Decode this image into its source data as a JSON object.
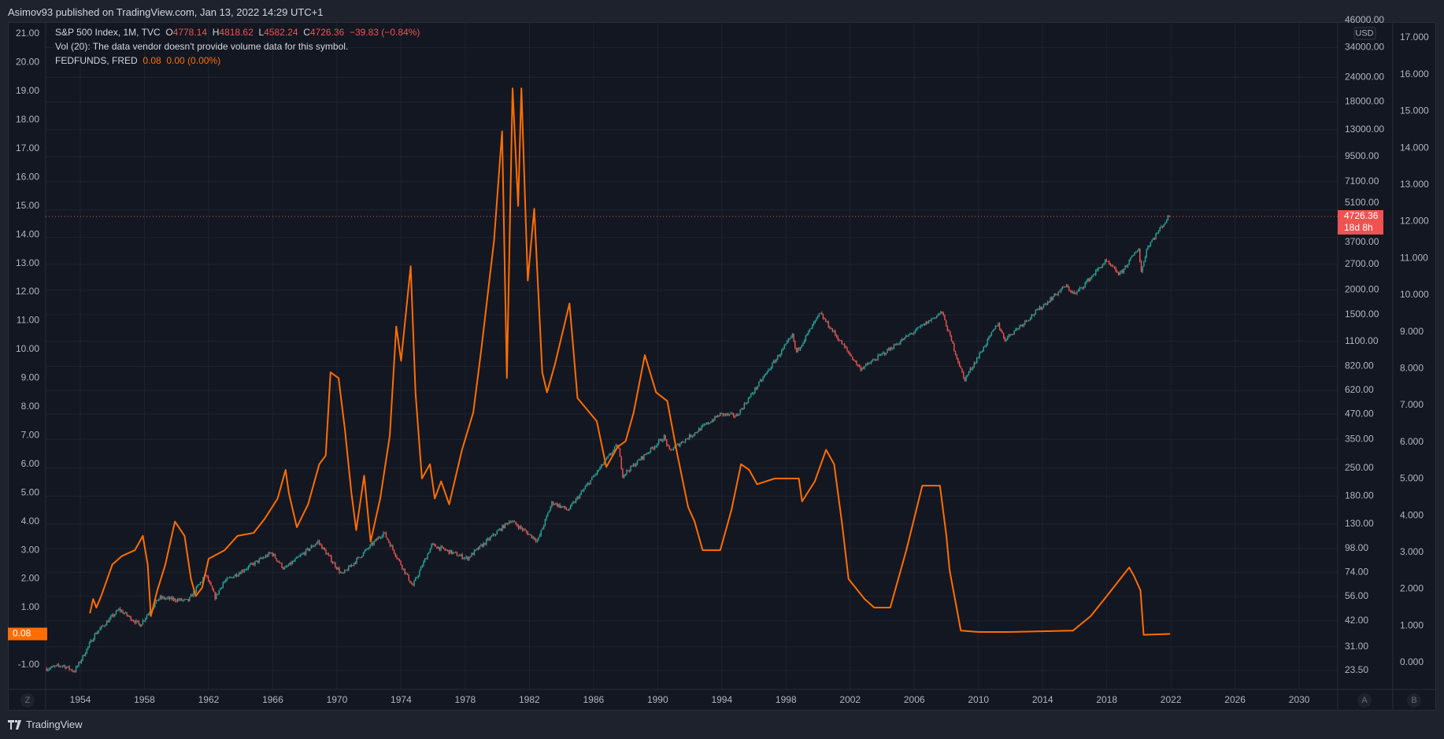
{
  "header": {
    "published": "Asimov93 published on TradingView.com, Jan 13, 2022 14:29 UTC+1"
  },
  "legend": {
    "symbol": "S&P 500 Index, 1M, TVC",
    "open_label": "O",
    "open": "4778.14",
    "high_label": "H",
    "high": "4818.62",
    "low_label": "L",
    "low": "4582.24",
    "close_label": "C",
    "close": "4726.36",
    "change": "−39.83 (−0.84%)",
    "volume": "Vol (20): The data vendor doesn't provide volume data for this symbol.",
    "fed_symbol": "FEDFUNDS, FRED",
    "fed_value": "0.08",
    "fed_change": "0.00 (0.00%)"
  },
  "footer": {
    "brand": "TradingView"
  },
  "colors": {
    "up": "#26a69a",
    "down": "#ef5350",
    "fed": "#ff6d00",
    "bg": "#131722",
    "grid": "#1f2330"
  },
  "chart_data": {
    "type": "line",
    "x_ticks": [
      "1954",
      "1958",
      "1962",
      "1966",
      "1970",
      "1974",
      "1978",
      "1982",
      "1986",
      "1990",
      "1994",
      "1998",
      "2002",
      "2006",
      "2010",
      "2014",
      "2018",
      "2022",
      "2026",
      "2030"
    ],
    "left_axis": {
      "ticks": [
        "21.00",
        "20.00",
        "19.00",
        "18.00",
        "17.00",
        "16.00",
        "15.00",
        "14.00",
        "13.00",
        "12.00",
        "11.00",
        "10.00",
        "9.00",
        "8.00",
        "7.00",
        "6.00",
        "5.00",
        "4.00",
        "3.00",
        "2.00",
        "1.00",
        "-1.00"
      ],
      "last_value_label": "0.08"
    },
    "price_axis": {
      "scale": "log",
      "unit": "USD",
      "ticks": [
        "46000.00",
        "34000.00",
        "24000.00",
        "18000.00",
        "13000.00",
        "9500.00",
        "7100.00",
        "5100.00",
        "3700.00",
        "2700.00",
        "2000.00",
        "1500.00",
        "1100.00",
        "820.00",
        "620.00",
        "470.00",
        "350.00",
        "250.00",
        "180.00",
        "130.00",
        "98.00",
        "74.00",
        "56.00",
        "42.00",
        "31.00",
        "23.50"
      ],
      "last_price": "4726.36",
      "countdown": "18d 8h",
      "axis_button": "A"
    },
    "b_axis": {
      "ticks": [
        "17.000",
        "16.000",
        "15.000",
        "14.000",
        "13.000",
        "12.000",
        "11.000",
        "10.000",
        "9.000",
        "8.000",
        "7.000",
        "6.000",
        "5.000",
        "4.000",
        "3.000",
        "2.000",
        "1.000",
        "0.000"
      ],
      "axis_button": "B"
    },
    "zoom_button": "Z",
    "series": [
      {
        "name": "S&P 500 Index (monthly candles, approx.)",
        "scale": "log",
        "points": [
          [
            1951.9,
            24
          ],
          [
            1953.0,
            25
          ],
          [
            1953.7,
            23.3
          ],
          [
            1954.0,
            25.5
          ],
          [
            1955.0,
            36
          ],
          [
            1956.5,
            48
          ],
          [
            1957.8,
            40
          ],
          [
            1959.0,
            55
          ],
          [
            1960.8,
            53
          ],
          [
            1961.9,
            72
          ],
          [
            1962.5,
            55
          ],
          [
            1963.0,
            66
          ],
          [
            1966.0,
            93
          ],
          [
            1966.8,
            77
          ],
          [
            1968.9,
            106
          ],
          [
            1970.4,
            72
          ],
          [
            1973.0,
            118
          ],
          [
            1974.8,
            63
          ],
          [
            1976.0,
            102
          ],
          [
            1978.2,
            87
          ],
          [
            1980.9,
            136
          ],
          [
            1982.6,
            107
          ],
          [
            1983.5,
            168
          ],
          [
            1984.5,
            153
          ],
          [
            1987.6,
            330
          ],
          [
            1987.9,
            230
          ],
          [
            1990.5,
            360
          ],
          [
            1990.8,
            305
          ],
          [
            1994.0,
            470
          ],
          [
            1995.0,
            460
          ],
          [
            1998.5,
            1180
          ],
          [
            1998.7,
            960
          ],
          [
            2000.2,
            1520
          ],
          [
            2002.7,
            800
          ],
          [
            2003.1,
            830
          ],
          [
            2007.8,
            1550
          ],
          [
            2009.2,
            700
          ],
          [
            2011.3,
            1360
          ],
          [
            2011.7,
            1120
          ],
          [
            2015.5,
            2100
          ],
          [
            2016.1,
            1900
          ],
          [
            2018.0,
            2800
          ],
          [
            2018.9,
            2400
          ],
          [
            2020.1,
            3300
          ],
          [
            2020.2,
            2400
          ],
          [
            2020.6,
            3300
          ],
          [
            2021.95,
            4726
          ]
        ]
      },
      {
        "name": "FEDFUNDS",
        "scale": "left",
        "points": [
          [
            1954.6,
            0.8
          ],
          [
            1954.8,
            1.3
          ],
          [
            1955.0,
            1.0
          ],
          [
            1955.3,
            1.4
          ],
          [
            1956.0,
            2.5
          ],
          [
            1956.6,
            2.8
          ],
          [
            1957.4,
            3.0
          ],
          [
            1957.9,
            3.5
          ],
          [
            1958.2,
            2.5
          ],
          [
            1958.4,
            0.7
          ],
          [
            1958.8,
            1.6
          ],
          [
            1959.3,
            2.5
          ],
          [
            1959.9,
            4.0
          ],
          [
            1960.5,
            3.5
          ],
          [
            1960.9,
            2.0
          ],
          [
            1961.2,
            1.4
          ],
          [
            1961.6,
            1.7
          ],
          [
            1962.0,
            2.7
          ],
          [
            1963.0,
            3.0
          ],
          [
            1963.8,
            3.5
          ],
          [
            1964.8,
            3.6
          ],
          [
            1965.5,
            4.1
          ],
          [
            1966.3,
            4.8
          ],
          [
            1966.8,
            5.8
          ],
          [
            1967.0,
            5.0
          ],
          [
            1967.5,
            3.8
          ],
          [
            1968.2,
            4.6
          ],
          [
            1968.9,
            6.0
          ],
          [
            1969.3,
            6.3
          ],
          [
            1969.6,
            9.2
          ],
          [
            1970.1,
            9.0
          ],
          [
            1970.5,
            7.2
          ],
          [
            1970.9,
            5.0
          ],
          [
            1971.2,
            3.7
          ],
          [
            1971.7,
            5.6
          ],
          [
            1972.1,
            3.3
          ],
          [
            1972.7,
            4.8
          ],
          [
            1973.3,
            7.0
          ],
          [
            1973.7,
            10.8
          ],
          [
            1974.0,
            9.6
          ],
          [
            1974.6,
            12.9
          ],
          [
            1974.9,
            8.5
          ],
          [
            1975.3,
            5.5
          ],
          [
            1975.8,
            6.0
          ],
          [
            1976.1,
            4.8
          ],
          [
            1976.5,
            5.4
          ],
          [
            1977.0,
            4.6
          ],
          [
            1977.8,
            6.5
          ],
          [
            1978.5,
            7.8
          ],
          [
            1979.0,
            10.0
          ],
          [
            1979.8,
            13.8
          ],
          [
            1980.3,
            17.6
          ],
          [
            1980.6,
            9.0
          ],
          [
            1980.95,
            19.1
          ],
          [
            1981.3,
            15.0
          ],
          [
            1981.5,
            19.1
          ],
          [
            1981.9,
            12.4
          ],
          [
            1982.3,
            14.9
          ],
          [
            1982.8,
            9.2
          ],
          [
            1983.1,
            8.5
          ],
          [
            1983.6,
            9.5
          ],
          [
            1984.5,
            11.6
          ],
          [
            1985.0,
            8.3
          ],
          [
            1985.6,
            7.9
          ],
          [
            1986.2,
            7.5
          ],
          [
            1986.8,
            5.9
          ],
          [
            1987.5,
            6.6
          ],
          [
            1988.0,
            6.8
          ],
          [
            1988.5,
            7.8
          ],
          [
            1989.2,
            9.8
          ],
          [
            1989.9,
            8.5
          ],
          [
            1990.6,
            8.2
          ],
          [
            1991.2,
            6.4
          ],
          [
            1991.9,
            4.5
          ],
          [
            1992.3,
            4.0
          ],
          [
            1992.8,
            3.0
          ],
          [
            1993.9,
            3.0
          ],
          [
            1994.6,
            4.4
          ],
          [
            1995.2,
            6.0
          ],
          [
            1995.7,
            5.8
          ],
          [
            1996.2,
            5.3
          ],
          [
            1997.3,
            5.5
          ],
          [
            1998.8,
            5.5
          ],
          [
            1999.0,
            4.7
          ],
          [
            1999.8,
            5.4
          ],
          [
            2000.5,
            6.5
          ],
          [
            2001.0,
            6.0
          ],
          [
            2001.5,
            3.9
          ],
          [
            2001.9,
            2.0
          ],
          [
            2002.9,
            1.3
          ],
          [
            2003.5,
            1.0
          ],
          [
            2004.5,
            1.0
          ],
          [
            2005.5,
            3.0
          ],
          [
            2006.5,
            5.25
          ],
          [
            2007.6,
            5.25
          ],
          [
            2008.0,
            3.5
          ],
          [
            2008.2,
            2.3
          ],
          [
            2008.9,
            0.2
          ],
          [
            2010.0,
            0.15
          ],
          [
            2012.0,
            0.15
          ],
          [
            2015.9,
            0.2
          ],
          [
            2017.0,
            0.7
          ],
          [
            2018.0,
            1.4
          ],
          [
            2019.4,
            2.4
          ],
          [
            2019.7,
            2.1
          ],
          [
            2020.1,
            1.6
          ],
          [
            2020.3,
            0.05
          ],
          [
            2021.95,
            0.08
          ]
        ]
      }
    ]
  }
}
